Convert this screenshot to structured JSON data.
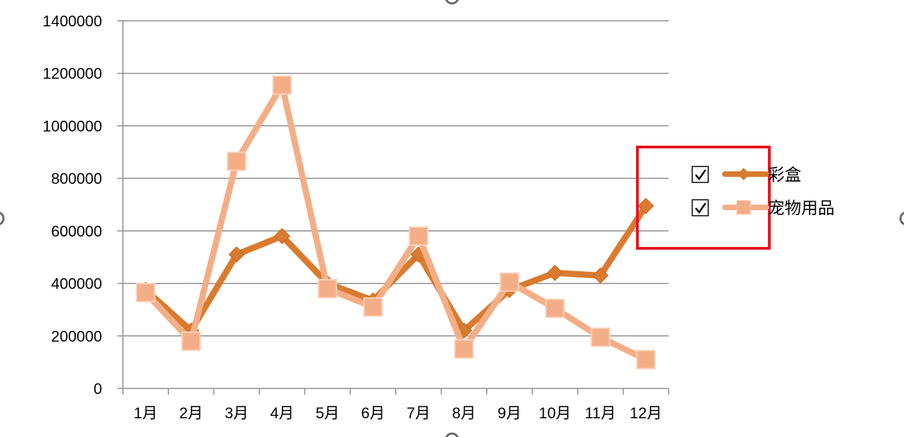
{
  "chart_data": {
    "type": "line",
    "title": "",
    "xlabel": "",
    "ylabel": "",
    "categories": [
      "1月",
      "2月",
      "3月",
      "4月",
      "5月",
      "6月",
      "7月",
      "8月",
      "9月",
      "10月",
      "11月",
      "12月"
    ],
    "ylim": [
      0,
      1400000
    ],
    "yticks": [
      "0",
      "200000",
      "400000",
      "600000",
      "800000",
      "1000000",
      "1200000",
      "1400000"
    ],
    "grid": true,
    "legend_position": "right",
    "series": [
      {
        "name": "彩盒",
        "color": "#D97B2F",
        "marker": "diamond",
        "values": [
          375000,
          220000,
          510000,
          580000,
          400000,
          335000,
          510000,
          220000,
          375000,
          440000,
          430000,
          695000
        ]
      },
      {
        "name": "宠物用品",
        "color": "#F4AE87",
        "marker": "square",
        "values": [
          365000,
          180000,
          865000,
          1155000,
          380000,
          310000,
          580000,
          150000,
          405000,
          305000,
          195000,
          110000
        ]
      }
    ]
  },
  "legend": {
    "items": [
      {
        "label": "彩盒",
        "checked": true
      },
      {
        "label": "宠物用品",
        "checked": true
      }
    ],
    "highlight_color": "#E8141F"
  }
}
